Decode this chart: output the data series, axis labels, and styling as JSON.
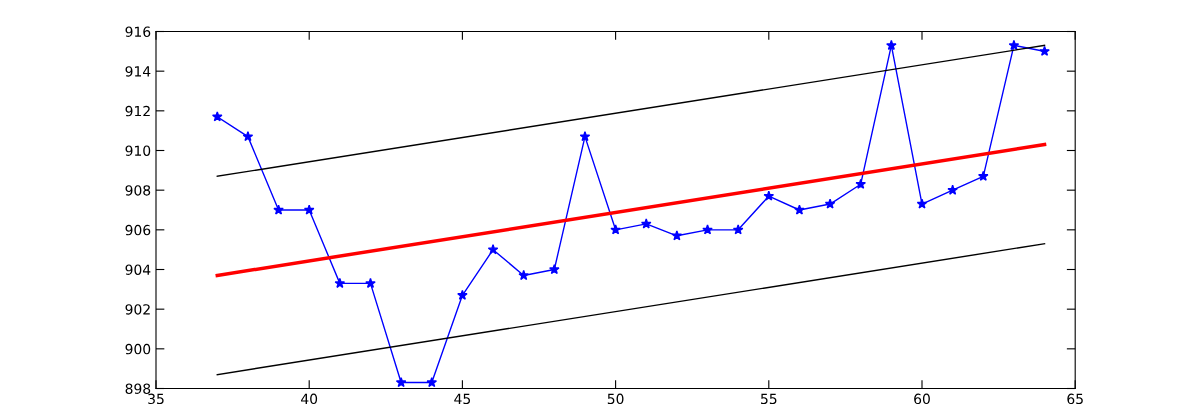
{
  "chart_data": {
    "type": "line",
    "xlim": [
      35,
      65
    ],
    "xticks": [
      35,
      40,
      45,
      50,
      55,
      60,
      65
    ],
    "ylim": [
      898,
      916
    ],
    "yticks": [
      898,
      900,
      902,
      904,
      906,
      908,
      910,
      912,
      914,
      916
    ],
    "grid": false,
    "series": [
      {
        "color": "#0000ff",
        "marker": "star",
        "line_style": "solid",
        "x": [
          37,
          38,
          39,
          40,
          41,
          42,
          43,
          44,
          45,
          46,
          47,
          48,
          49,
          50,
          51,
          52,
          53,
          54,
          55,
          56,
          57,
          58,
          59,
          60,
          61,
          62,
          63,
          64
        ],
        "values": [
          911.7,
          910.7,
          907,
          907,
          903.3,
          903.3,
          898.3,
          898.3,
          902.7,
          905,
          903.7,
          904,
          910.7,
          906,
          906.3,
          905.7,
          906,
          906,
          907.7,
          907,
          907.3,
          908.3,
          915.3,
          907.3,
          908,
          908.7,
          915.3,
          915
        ]
      },
      {
        "color": "#ff0000",
        "marker": "none",
        "line_style": "solid",
        "x": [
          37,
          64
        ],
        "values": [
          903.7,
          910.3
        ]
      },
      {
        "color": "#000000",
        "marker": "none",
        "line_style": "solid",
        "x": [
          37,
          64
        ],
        "values": [
          908.7,
          915.3
        ]
      },
      {
        "color": "#000000",
        "marker": "none",
        "line_style": "solid",
        "x": [
          37,
          64
        ],
        "values": [
          898.7,
          905.3
        ]
      }
    ]
  }
}
